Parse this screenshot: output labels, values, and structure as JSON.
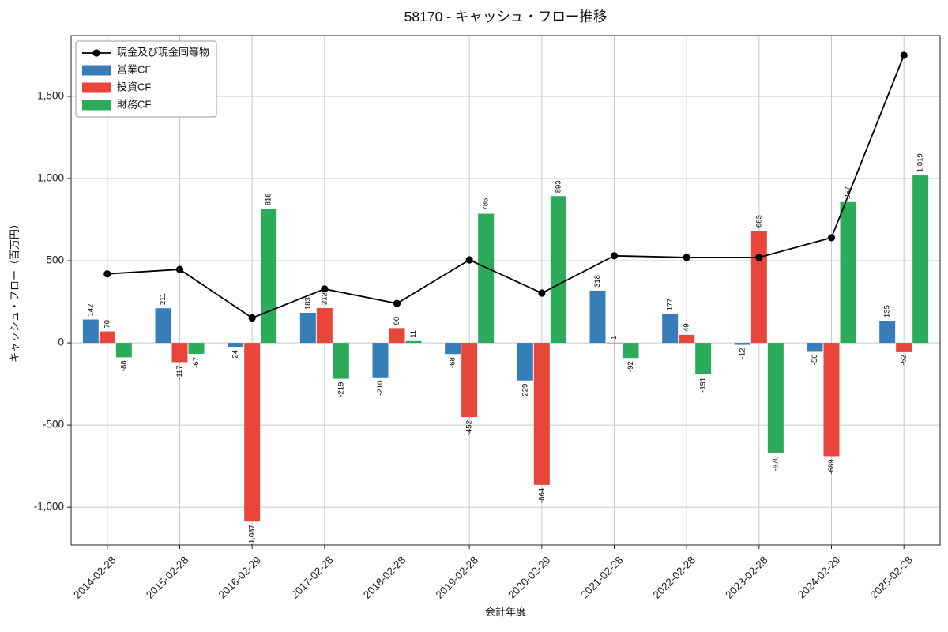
{
  "chart_data": {
    "type": "bar",
    "title": "58170 - キャッシュ・フロー推移",
    "xlabel": "会計年度",
    "ylabel": "キャッシュ・フロー（百万円）",
    "categories": [
      "2014-02-28",
      "2015-02-28",
      "2016-02-29",
      "2017-02-28",
      "2018-02-28",
      "2019-02-28",
      "2020-02-29",
      "2021-02-28",
      "2022-02-28",
      "2023-02-28",
      "2024-02-29",
      "2025-02-28"
    ],
    "series": [
      {
        "name": "現金及び現金同等物",
        "key": "cash-and-equivalents",
        "type": "line",
        "color": "#000000",
        "values": [
          420,
          447,
          152,
          328,
          240,
          505,
          303,
          530,
          520,
          520,
          640,
          1750
        ]
      },
      {
        "name": "営業CF",
        "key": "operating-cf",
        "type": "bar",
        "color": "#377eb8",
        "values": [
          142,
          211,
          -24,
          183,
          -210,
          -68,
          -229,
          318,
          177,
          -12,
          -50,
          135
        ]
      },
      {
        "name": "投資CF",
        "key": "investing-cf",
        "type": "bar",
        "color": "#e8463a",
        "values": [
          70,
          -117,
          -1087,
          212,
          90,
          -452,
          -864,
          1,
          49,
          683,
          -689,
          -52
        ]
      },
      {
        "name": "財務CF",
        "key": "financing-cf",
        "type": "bar",
        "color": "#2cab5b",
        "values": [
          -88,
          -67,
          816,
          -219,
          11,
          786,
          893,
          -92,
          -191,
          -670,
          857,
          1019
        ]
      }
    ],
    "ylim": [
      -1230,
      1870
    ],
    "yticks": [
      -1000,
      -500,
      0,
      500,
      1000,
      1500
    ],
    "grid": true,
    "legend_position": "upper-left"
  }
}
